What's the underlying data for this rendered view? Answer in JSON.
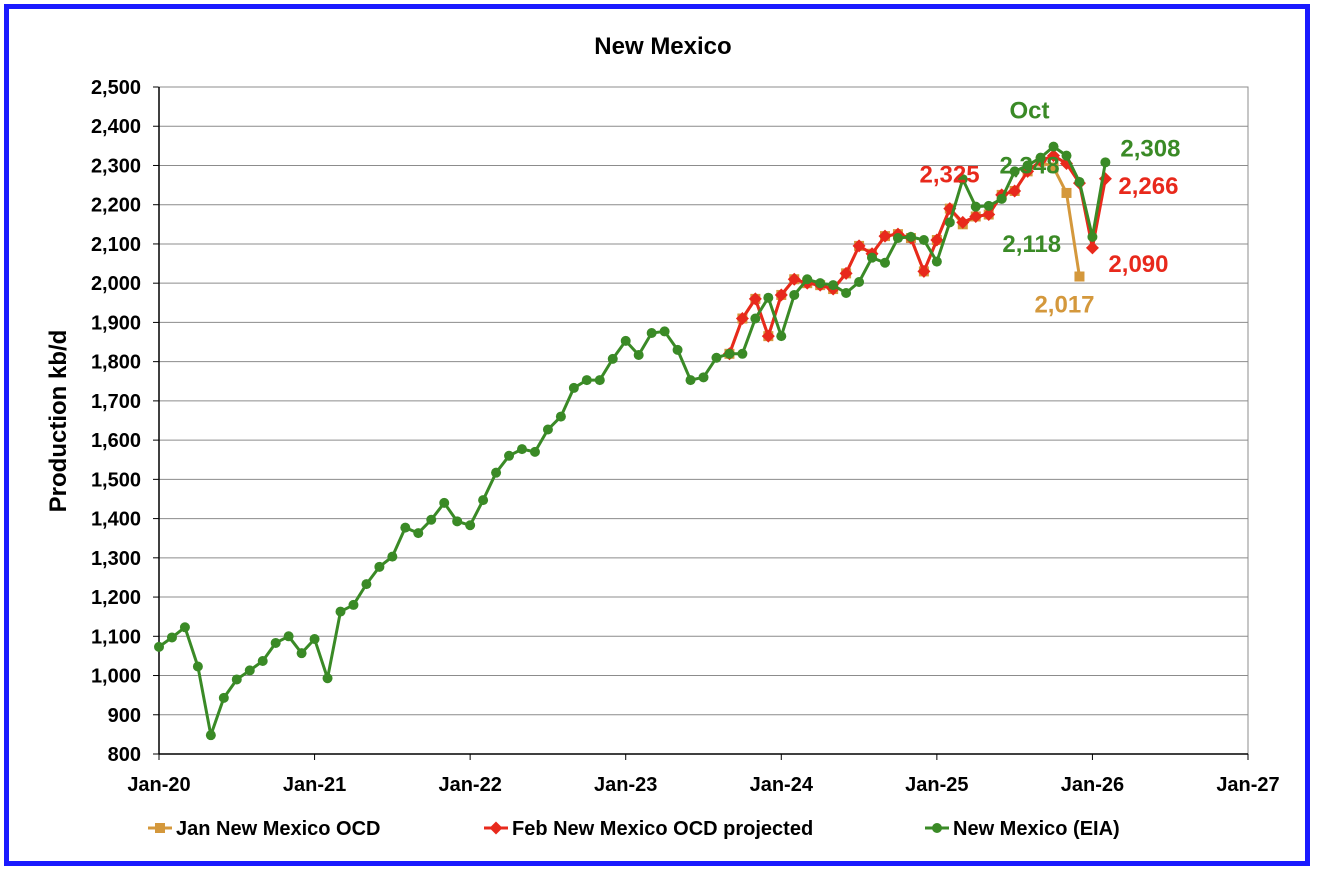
{
  "chart_data": {
    "type": "line",
    "title": "New Mexico",
    "ylabel": "Production kb/d",
    "xlabel": "",
    "ylim": [
      800,
      2500
    ],
    "yticks": [
      800,
      900,
      1000,
      1100,
      1200,
      1300,
      1400,
      1500,
      1600,
      1700,
      1800,
      1900,
      2000,
      2100,
      2200,
      2300,
      2400,
      2500
    ],
    "ytick_labels": [
      "800",
      "900",
      "1,000",
      "1,100",
      "1,200",
      "1,300",
      "1,400",
      "1,500",
      "1,600",
      "1,700",
      "1,800",
      "1,900",
      "2,000",
      "2,100",
      "2,200",
      "2,300",
      "2,400",
      "2,500"
    ],
    "xlim": [
      "2020-01",
      "2027-01"
    ],
    "xticks": [
      "2020-01",
      "2021-01",
      "2022-01",
      "2023-01",
      "2024-01",
      "2025-01",
      "2026-01",
      "2027-01"
    ],
    "xtick_labels": [
      "Jan-20",
      "Jan-21",
      "Jan-22",
      "Jan-23",
      "Jan-24",
      "Jan-25",
      "Jan-26",
      "Jan-27"
    ],
    "grid": "horizontal",
    "legend_position": "bottom",
    "series": [
      {
        "name": "Jan New Mexico OCD",
        "color": "#d4983c",
        "marker": "square",
        "start": "2023-09",
        "values": [
          1820,
          1910,
          1960,
          1865,
          1970,
          2010,
          2000,
          1995,
          1985,
          2025,
          2095,
          2075,
          2120,
          2125,
          2115,
          2030,
          2110,
          2190,
          2150,
          2170,
          2175,
          2225,
          2235,
          2285,
          2310,
          2295,
          2230,
          2017
        ]
      },
      {
        "name": "Feb New Mexico OCD projected",
        "color": "#e8291c",
        "marker": "diamond",
        "start": "2023-09",
        "values": [
          1820,
          1910,
          1960,
          1865,
          1970,
          2010,
          2000,
          1995,
          1985,
          2025,
          2095,
          2075,
          2120,
          2125,
          2115,
          2030,
          2110,
          2190,
          2155,
          2170,
          2175,
          2225,
          2235,
          2285,
          2312,
          2325,
          2305,
          2255,
          2090,
          2266
        ]
      },
      {
        "name": "New Mexico (EIA)",
        "color": "#3a8a26",
        "marker": "circle",
        "start": "2020-01",
        "values": [
          1073,
          1097,
          1123,
          1023,
          848,
          943,
          990,
          1013,
          1037,
          1083,
          1100,
          1057,
          1093,
          993,
          1163,
          1180,
          1233,
          1277,
          1303,
          1377,
          1363,
          1397,
          1440,
          1393,
          1383,
          1447,
          1517,
          1560,
          1577,
          1570,
          1627,
          1660,
          1733,
          1753,
          1753,
          1807,
          1853,
          1817,
          1873,
          1877,
          1830,
          1753,
          1760,
          1810,
          1820,
          1820,
          1910,
          1963,
          1865,
          1970,
          2010,
          2000,
          1995,
          1975,
          2003,
          2065,
          2052,
          2115,
          2118,
          2110,
          2055,
          2155,
          2265,
          2195,
          2197,
          2215,
          2285,
          2300,
          2320,
          2348,
          2325,
          2258,
          2118,
          2308
        ]
      }
    ],
    "annotations": [
      {
        "text": "Oct",
        "color": "#3a8a26",
        "x": "2025-10",
        "y": 2348
      },
      {
        "text": "2,348",
        "color": "#3a8a26",
        "x": "2025-10",
        "y": 2348
      },
      {
        "text": "2,325",
        "color": "#e8291c",
        "x": "2025-10",
        "y": 2325
      },
      {
        "text": "2,308",
        "color": "#3a8a26",
        "x": "2026-02",
        "y": 2308
      },
      {
        "text": "2,266",
        "color": "#e8291c",
        "x": "2026-02",
        "y": 2266
      },
      {
        "text": "2,118",
        "color": "#3a8a26",
        "x": "2026-01",
        "y": 2118
      },
      {
        "text": "2,090",
        "color": "#e8291c",
        "x": "2026-01",
        "y": 2090
      },
      {
        "text": "2,017",
        "color": "#d4983c",
        "x": "2025-12",
        "y": 2017
      }
    ]
  }
}
